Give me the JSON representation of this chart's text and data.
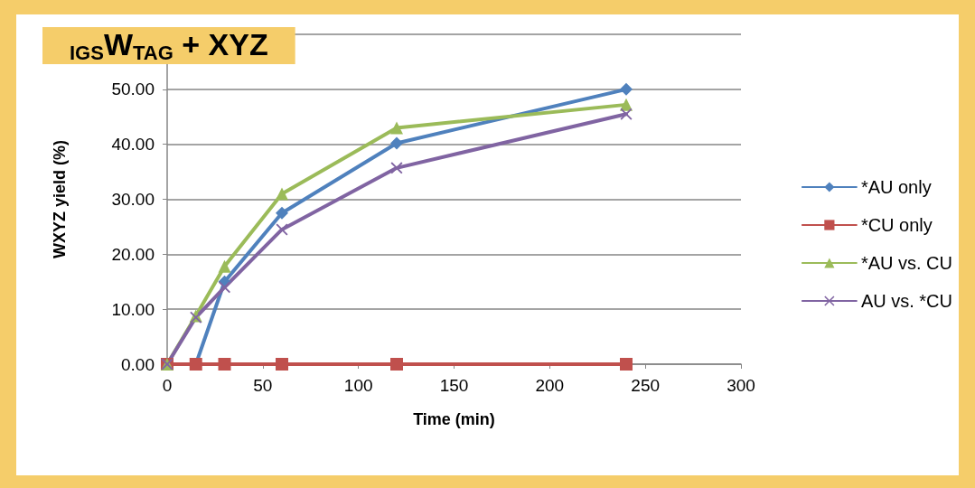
{
  "chart_data": {
    "type": "line",
    "title": "$_{IGS}$W$_{TAG}$ + XYZ",
    "xlabel": "Time (min)",
    "ylabel": "WXYZ yield (%)",
    "x": [
      0,
      15,
      30,
      60,
      120,
      240
    ],
    "series": [
      {
        "name": "*AU only",
        "color": "#4f81bd",
        "marker": "diamond",
        "values": [
          0,
          0,
          15,
          27.5,
          40.2,
          50
        ]
      },
      {
        "name": "*CU only",
        "color": "#c0504d",
        "marker": "square",
        "values": [
          0,
          0,
          0,
          0,
          0,
          0
        ]
      },
      {
        "name": "*AU vs. CU",
        "color": "#9bbb59",
        "marker": "triangle",
        "values": [
          0,
          8.8,
          17.8,
          31,
          43,
          47.2
        ]
      },
      {
        "name": "AU vs. *CU",
        "color": "#8064a2",
        "marker": "cross",
        "values": [
          0,
          8.5,
          14,
          24.5,
          35.7,
          45.5
        ]
      }
    ],
    "xlim": [
      0,
      300
    ],
    "xticks": [
      0,
      50,
      100,
      150,
      200,
      250,
      300
    ],
    "ylim": [
      0,
      60
    ],
    "yticks": [
      {
        "value": 0,
        "label": "0.00"
      },
      {
        "value": 10,
        "label": "10.00"
      },
      {
        "value": 20,
        "label": "20.00"
      },
      {
        "value": 30,
        "label": "30.00"
      },
      {
        "value": 40,
        "label": "40.00"
      },
      {
        "value": 50,
        "label": "50.00"
      },
      {
        "value": 60,
        "label": null
      }
    ],
    "grid": "y",
    "legend": "right",
    "line_style": "solid"
  }
}
